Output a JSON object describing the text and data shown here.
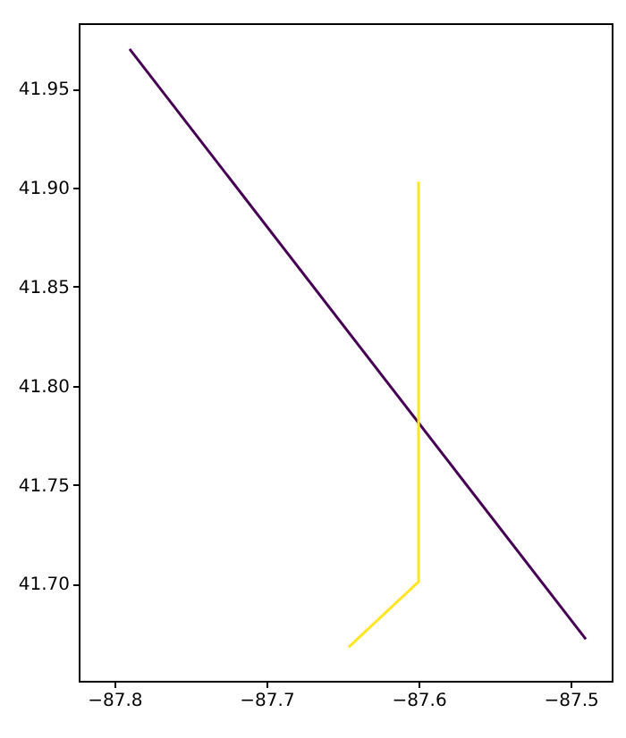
{
  "chart_data": {
    "type": "line",
    "series": [
      {
        "color": "#440154",
        "x": [
          -87.79,
          -87.49
        ],
        "values": [
          41.97,
          41.672
        ]
      },
      {
        "color": "#fde725",
        "x": [
          -87.646,
          -87.6,
          -87.6
        ],
        "values": [
          41.668,
          41.701,
          41.903
        ]
      }
    ],
    "xlim": [
      -87.8235,
      -87.473
    ],
    "ylim": [
      41.651,
      41.983
    ],
    "xticks": [
      {
        "value": -87.8,
        "label": "−87.8"
      },
      {
        "value": -87.7,
        "label": "−87.7"
      },
      {
        "value": -87.6,
        "label": "−87.6"
      },
      {
        "value": -87.5,
        "label": "−87.5"
      }
    ],
    "yticks": [
      {
        "value": 41.7,
        "label": "41.70"
      },
      {
        "value": 41.75,
        "label": "41.75"
      },
      {
        "value": 41.8,
        "label": "41.80"
      },
      {
        "value": 41.85,
        "label": "41.85"
      },
      {
        "value": 41.9,
        "label": "41.90"
      },
      {
        "value": 41.95,
        "label": "41.95"
      }
    ],
    "grid": false,
    "line_style": "solid",
    "marker": "none"
  }
}
